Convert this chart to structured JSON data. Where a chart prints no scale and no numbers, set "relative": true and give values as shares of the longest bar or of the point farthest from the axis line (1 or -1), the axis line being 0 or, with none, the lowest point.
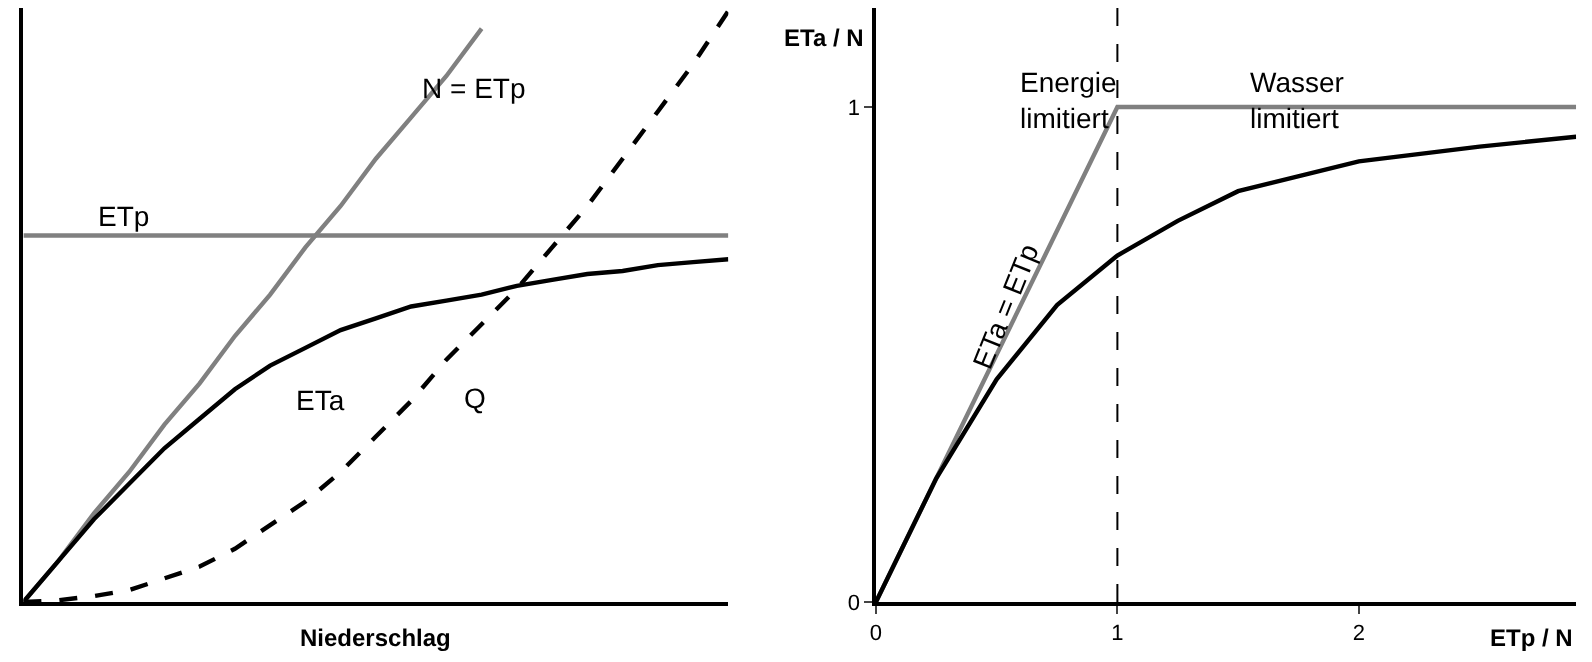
{
  "chart_data": [
    {
      "type": "line",
      "relative": true,
      "xlabel": "Niederschlag",
      "tick_labels": false,
      "marker": "none",
      "categories": [
        null,
        null,
        null,
        null,
        null,
        null,
        null,
        null,
        null,
        null,
        null,
        null,
        null,
        null,
        null,
        null,
        null,
        null,
        null,
        null,
        null
      ],
      "series": [
        {
          "color": "#808080",
          "line_style": "solid",
          "values": [
            0,
            0.07,
            0.15,
            0.22,
            0.3,
            0.37,
            0.45,
            0.52,
            0.6,
            0.67,
            0.75,
            0.82,
            0.89,
            0.97,
            null,
            null,
            null,
            null,
            null,
            null,
            null
          ]
        },
        {
          "color": "#808080",
          "line_style": "solid",
          "values": [
            0.62,
            0.62,
            0.62,
            0.62,
            0.62,
            0.62,
            0.62,
            0.62,
            0.62,
            0.62,
            0.62,
            0.62,
            0.62,
            0.62,
            0.62,
            0.62,
            0.62,
            0.62,
            0.62,
            0.62,
            0.62
          ]
        },
        {
          "color": "#000000",
          "line_style": "solid",
          "values": [
            0,
            0.07,
            0.14,
            0.2,
            0.26,
            0.31,
            0.36,
            0.4,
            0.43,
            0.46,
            0.48,
            0.5,
            0.51,
            0.52,
            0.535,
            0.545,
            0.555,
            0.56,
            0.57,
            0.575,
            0.58
          ]
        },
        {
          "color": "#000000",
          "line_style": "dashed",
          "values": [
            0,
            0.003,
            0.01,
            0.02,
            0.04,
            0.06,
            0.09,
            0.13,
            0.17,
            0.22,
            0.28,
            0.34,
            0.41,
            0.47,
            0.53,
            0.6,
            0.67,
            0.75,
            0.83,
            0.91,
            1
          ]
        }
      ],
      "annotations": [
        "N = ETp",
        "ETp",
        "ETa",
        "Q"
      ]
    },
    {
      "type": "line",
      "xlabel": "ETp / N",
      "ylabel": "ETa / N",
      "marker": "none",
      "xlim": [
        0,
        2.9
      ],
      "ylim": [
        0,
        1.2
      ],
      "xticks": [
        0,
        1,
        2
      ],
      "yticks": [
        0,
        1
      ],
      "series": [
        {
          "color": "#808080",
          "line_style": "solid",
          "x": [
            0,
            1,
            2.9
          ],
          "values": [
            0,
            1,
            1
          ]
        },
        {
          "color": "#000000",
          "line_style": "solid",
          "x": [
            0,
            0.1,
            0.25,
            0.5,
            0.75,
            1,
            1.25,
            1.5,
            2,
            2.5,
            2.9
          ],
          "values": [
            0,
            0.1,
            0.25,
            0.45,
            0.6,
            0.7,
            0.77,
            0.83,
            0.89,
            0.92,
            0.94
          ]
        }
      ],
      "ref_lines": [
        {
          "axis": "x",
          "value": 1,
          "color": "#000000",
          "line_style": "dashed"
        }
      ],
      "annotations": [
        "Energie\nlimitiert",
        "Wasser\nlimitiert",
        "ETa = ETp"
      ]
    }
  ]
}
